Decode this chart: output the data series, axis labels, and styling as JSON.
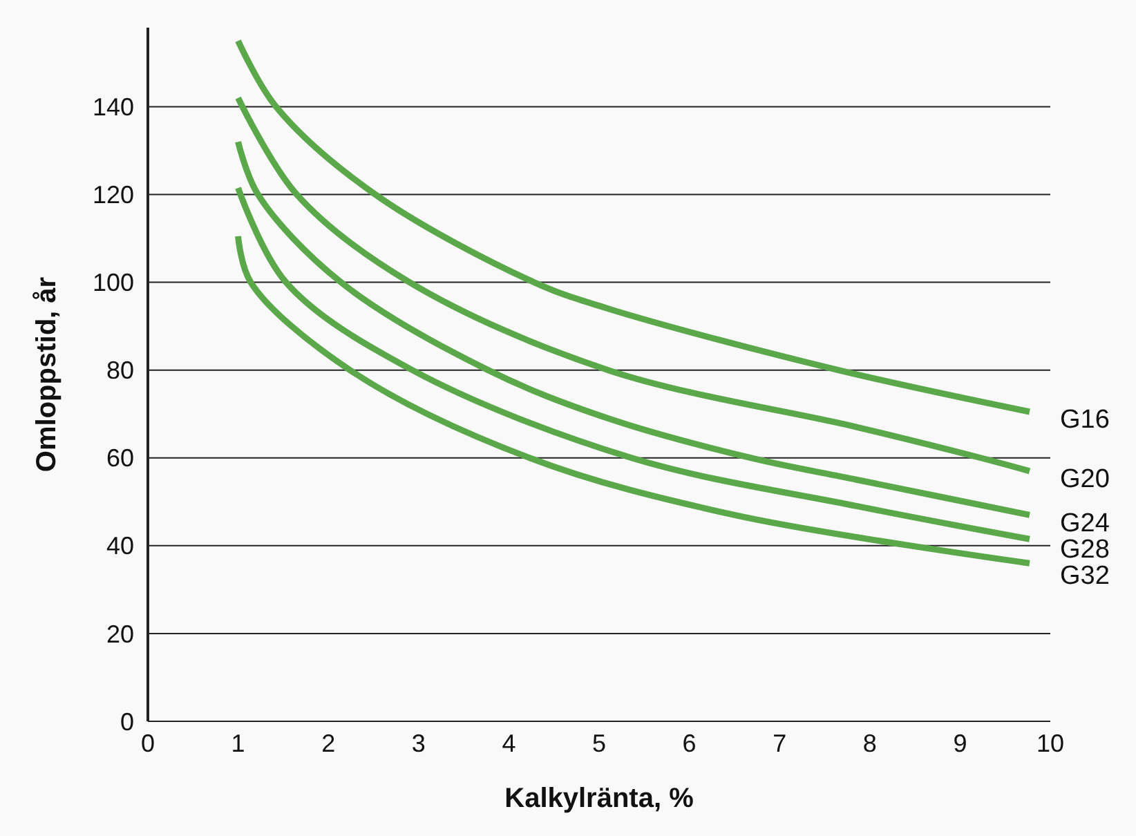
{
  "chart_data": {
    "type": "line",
    "xlabel": "Kalkylränta, %",
    "ylabel": "Omloppstid, år",
    "xlim": [
      0,
      10
    ],
    "xticks": [
      0,
      1,
      2,
      3,
      4,
      5,
      6,
      7,
      8,
      9,
      10
    ],
    "ylim": [
      0,
      158
    ],
    "yticks": [
      0,
      20,
      40,
      60,
      80,
      100,
      120,
      140
    ],
    "grid": "y",
    "marker": "none",
    "line_style": "solid",
    "series": [
      {
        "name": "G16",
        "color": "#5aa84a",
        "x": [
          1,
          1.42,
          2.52,
          4.28,
          5.1,
          7.65,
          9.77
        ],
        "values": [
          155,
          140,
          120,
          100,
          94,
          80,
          70.5
        ]
      },
      {
        "name": "G20",
        "color": "#5aa84a",
        "x": [
          1,
          1.65,
          2.9,
          5.1,
          7.86,
          9.23,
          9.77
        ],
        "values": [
          142,
          120,
          100,
          80,
          67,
          60,
          57
        ]
      },
      {
        "name": "G24",
        "color": "#5aa84a",
        "x": [
          1,
          1.22,
          2.14,
          3.77,
          5.1,
          6.68,
          7.86,
          9.77
        ],
        "values": [
          132,
          120,
          100,
          80,
          69,
          60,
          55,
          47
        ]
      },
      {
        "name": "G28",
        "color": "#5aa84a",
        "x": [
          1,
          1.53,
          2.93,
          5.36,
          7.86,
          9.77
        ],
        "values": [
          121.5,
          100,
          80,
          60,
          49,
          41.5
        ]
      },
      {
        "name": "G32",
        "color": "#5aa84a",
        "x": [
          1,
          1.14,
          2.24,
          4.23,
          6.5,
          9.77
        ],
        "values": [
          110.5,
          100,
          80,
          60,
          47,
          36
        ]
      }
    ]
  }
}
